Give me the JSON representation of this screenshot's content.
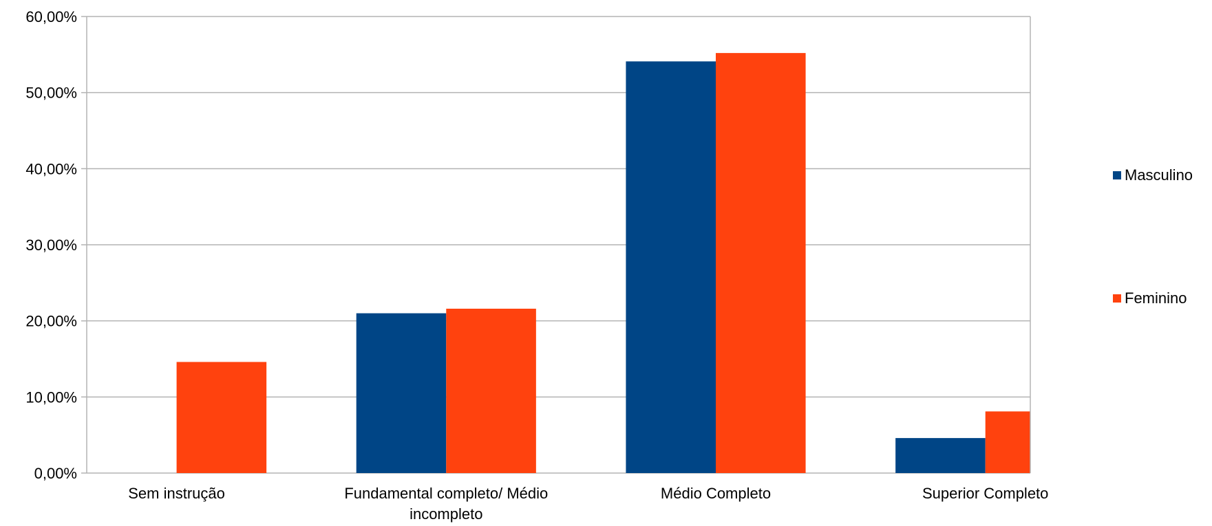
{
  "chart_data": {
    "type": "bar",
    "categories": [
      "Sem instrução",
      "Fundamental completo/ Médio incompleto",
      "Médio Completo",
      "Superior Completo"
    ],
    "category_lines": [
      [
        "Sem instrução"
      ],
      [
        "Fundamental completo/ Médio",
        "incompleto"
      ],
      [
        "Médio Completo"
      ],
      [
        "Superior Completo"
      ]
    ],
    "series": [
      {
        "name": "Masculino",
        "color": "#004586",
        "values": [
          0,
          21.0,
          54.1,
          4.6
        ]
      },
      {
        "name": "Feminino",
        "color": "#FF420E",
        "values": [
          14.6,
          21.6,
          55.2,
          8.1
        ]
      }
    ],
    "yticks": [
      "0,00%",
      "10,00%",
      "20,00%",
      "30,00%",
      "40,00%",
      "50,00%",
      "60,00%"
    ],
    "ylim": [
      0,
      60
    ],
    "grid": true,
    "legend_position": "right"
  }
}
